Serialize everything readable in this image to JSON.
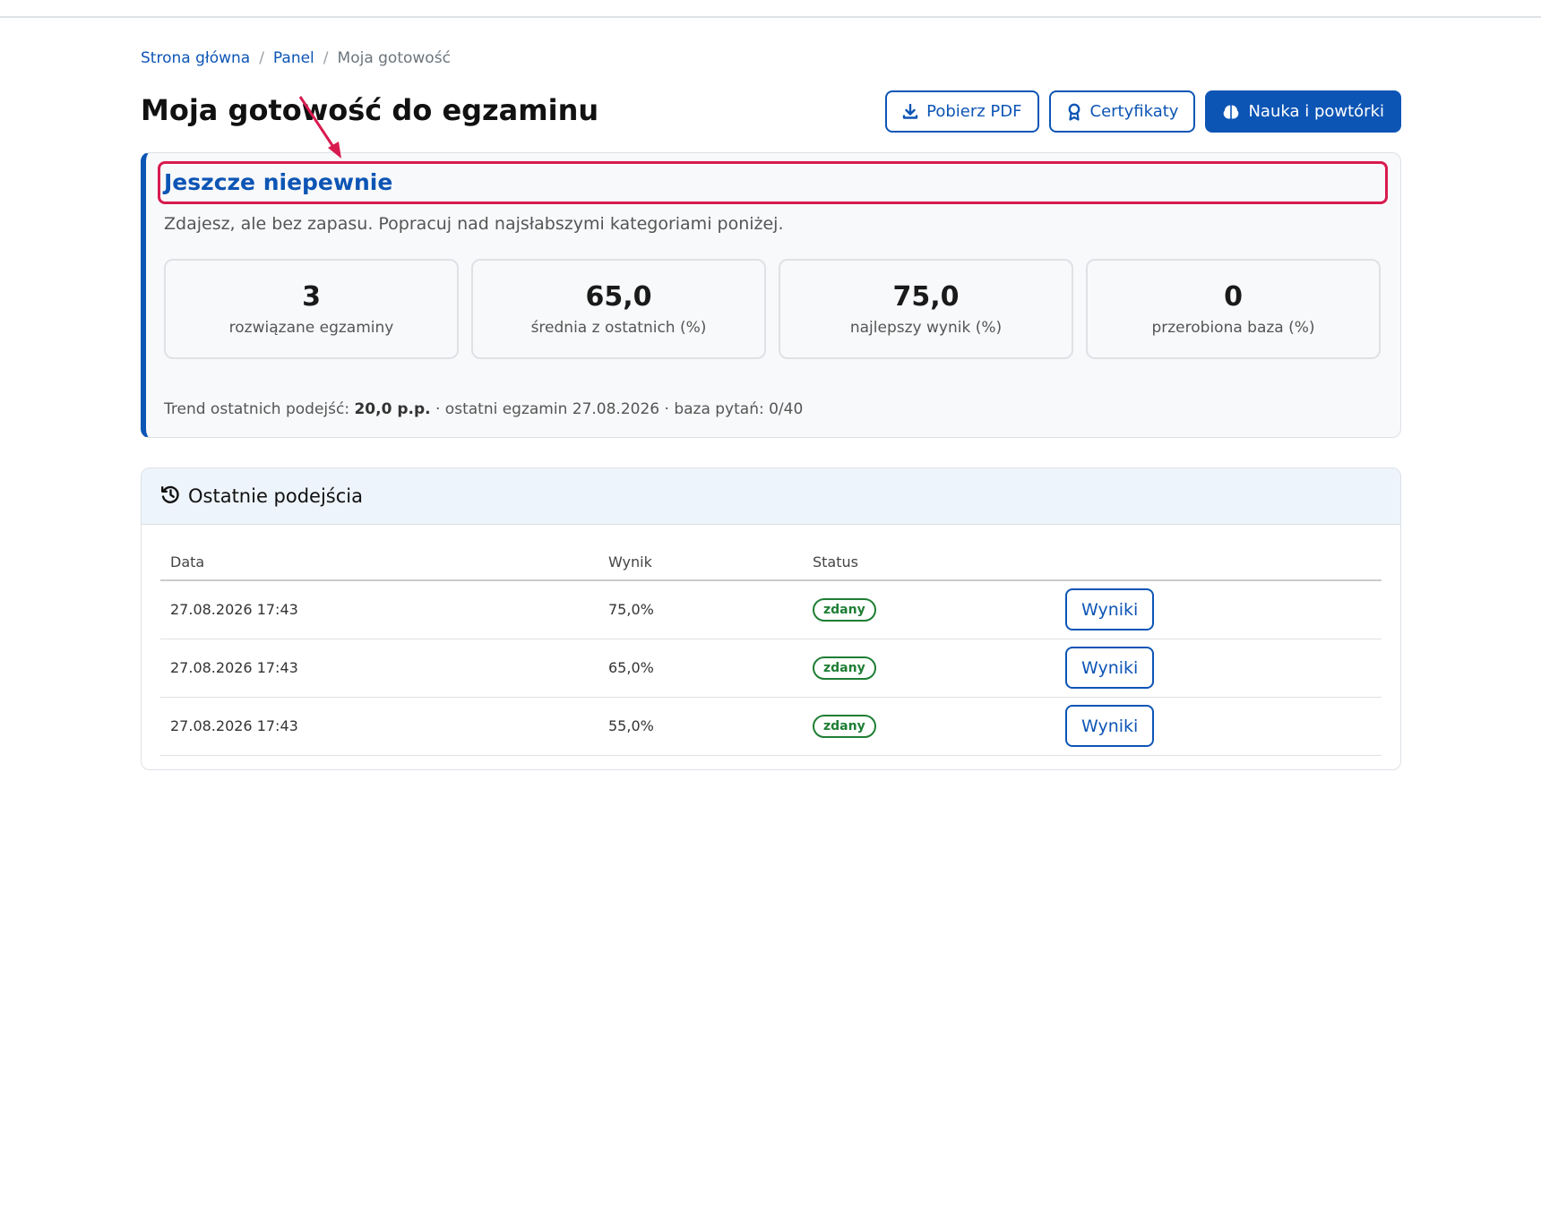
{
  "breadcrumb": {
    "home": "Strona główna",
    "separator": "/",
    "panel": "Panel",
    "current": "Moja gotowość"
  },
  "page": {
    "title": "Moja gotowość do egzaminu"
  },
  "actions": {
    "pdf": {
      "label": "Pobierz PDF",
      "icon": "download-icon"
    },
    "certificates": {
      "label": "Certyfikaty",
      "icon": "award-icon"
    },
    "study": {
      "label": "Nauka i powtórki",
      "icon": "brain-icon"
    }
  },
  "readiness": {
    "level": "Jeszcze niepewnie",
    "description": "Zdajesz, ale bez zapasu. Popracuj nad najsłabszymi kategoriami poniżej.",
    "stats": [
      {
        "value": "3",
        "label": "rozwiązane egzaminy"
      },
      {
        "value": "65,0",
        "label": "średnia z ostatnich (%)"
      },
      {
        "value": "75,0",
        "label": "najlepszy wynik (%)"
      },
      {
        "value": "0",
        "label": "przerobiona baza (%)"
      }
    ],
    "trend": {
      "prefix": "Trend ostatnich podejść:",
      "value": "20,0 p.p.",
      "suffix": "· ostatni egzamin 27.08.2026 · baza pytań: 0/40"
    }
  },
  "attempts": {
    "title": "Ostatnie podejścia",
    "icon": "history-icon",
    "columns": [
      "Data",
      "Wynik",
      "Status",
      ""
    ],
    "rows": [
      {
        "date": "27.08.2026 17:43",
        "score": "75,0%",
        "status": "zdany",
        "action": "Wyniki"
      },
      {
        "date": "27.08.2026 17:43",
        "score": "65,0%",
        "status": "zdany",
        "action": "Wyniki"
      },
      {
        "date": "27.08.2026 17:43",
        "score": "55,0%",
        "status": "zdany",
        "action": "Wyniki"
      }
    ]
  },
  "colors": {
    "accent": "#0d55b5",
    "success": "#1e7e34",
    "highlight": "#d81b4f"
  }
}
